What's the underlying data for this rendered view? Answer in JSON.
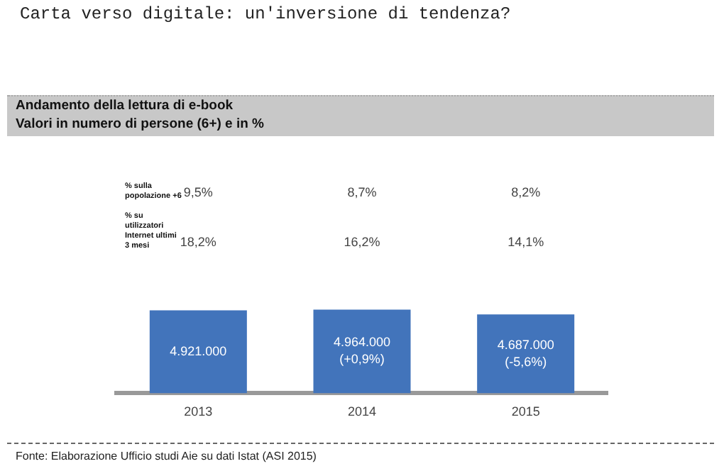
{
  "chart_data": {
    "type": "bar",
    "title": "Andamento della lettura di e-book",
    "subtitle": "Valori in numero di persone (6+) e in %",
    "categories": [
      "2013",
      "2014",
      "2015"
    ],
    "values": [
      4921000,
      4964000,
      4687000
    ],
    "color": "#4274bb",
    "value_labels": [
      "4.921.000",
      "4.964.000\n(+0,9%)",
      "4.687.000\n(-5,6%)"
    ],
    "annotations": [
      "Carta verso digitale: un'inversione di tendenza?",
      "% sulla popolazione +6",
      "9,5%",
      "8,7%",
      "8,2%",
      "% su utilizzatori Internet ultimi 3 mesi",
      "18,2%",
      "16,2%",
      "14,1%",
      "Fonte: Elaborazione Ufficio studi Aie su dati Istat (ASI 2015)"
    ]
  }
}
